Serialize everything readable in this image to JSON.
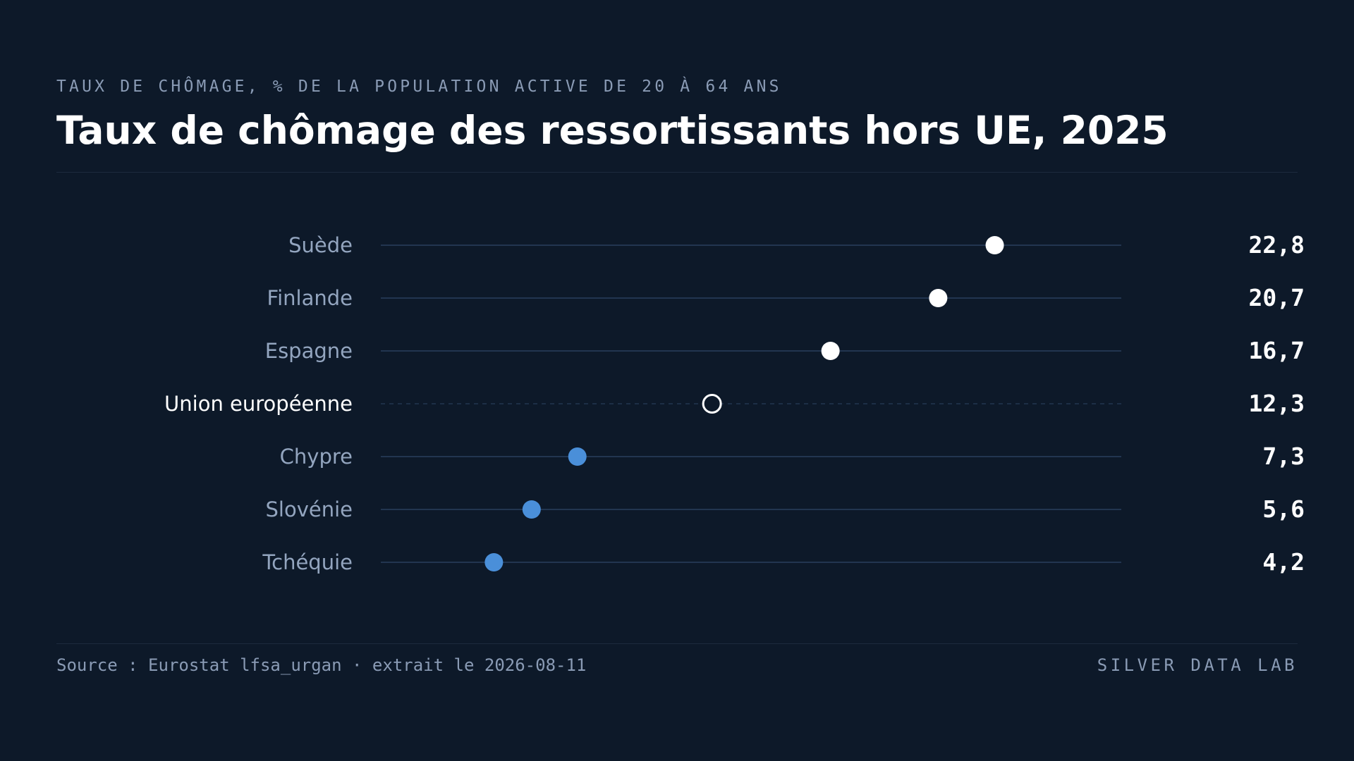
{
  "header": {
    "eyebrow": "TAUX DE CHÔMAGE, % DE LA POPULATION ACTIVE DE 20 À 64 ANS",
    "title": "Taux de chômage des ressortissants hors UE, 2025"
  },
  "footer": {
    "source": "Source : Eurostat lfsa_urgan · extrait le 2026-08-11",
    "brand": "SILVER DATA LAB"
  },
  "colors": {
    "background": "#0d1929",
    "high": "#ffffff",
    "low": "#4a8fd9",
    "reference": "#ffffff",
    "track": "#223550",
    "label": "#93a5bf",
    "label_reference": "#ffffff",
    "value": "#ffffff"
  },
  "chart_data": {
    "type": "scatter",
    "subtype": "dot-plot",
    "title": "Taux de chômage des ressortissants hors UE, 2025",
    "xlim": [
      0,
      27.5
    ],
    "grid": false,
    "categories": [
      "Suède",
      "Finlande",
      "Espagne",
      "Union européenne",
      "Chypre",
      "Slovénie",
      "Tchéquie"
    ],
    "values": [
      22.8,
      20.7,
      16.7,
      12.3,
      7.3,
      5.6,
      4.2
    ],
    "value_labels": [
      "22,8",
      "20,7",
      "16,7",
      "12,3",
      "7,3",
      "5,6",
      "4,2"
    ],
    "groups": [
      "high",
      "high",
      "high",
      "reference",
      "low",
      "low",
      "low"
    ]
  }
}
